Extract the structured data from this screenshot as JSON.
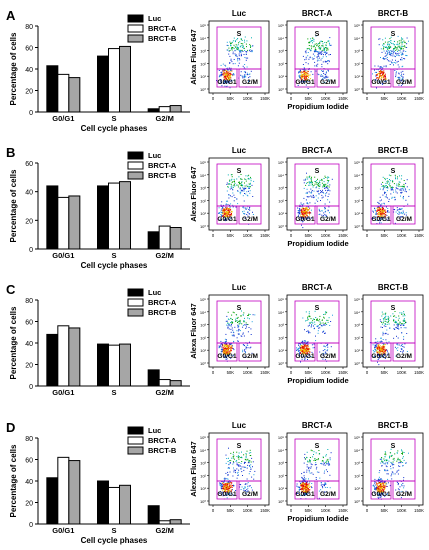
{
  "colors": {
    "luc": "#000000",
    "brct_a": "#ffffff",
    "brct_b": "#a6a6a6",
    "gate": "#c000c0"
  },
  "chart_data": [
    {
      "panel": "A",
      "type": "bar",
      "categories": [
        "G0/G1",
        "S",
        "G2/M"
      ],
      "xlabel": "Cell cycle phases",
      "ylabel": "Percentage of cells",
      "ylim": [
        0,
        80
      ],
      "yticks": [
        0,
        20,
        40,
        60,
        80
      ],
      "legend_position": "top-right",
      "series": [
        {
          "name": "Luc",
          "values": [
            43,
            52,
            3
          ]
        },
        {
          "name": "BRCT-A",
          "values": [
            35,
            59,
            5
          ]
        },
        {
          "name": "BRCT-B",
          "values": [
            32,
            61,
            6
          ]
        }
      ],
      "flow": {
        "titles": [
          "Luc",
          "BRCT-A",
          "BRCT-B"
        ],
        "ylabel": "Alexa Fluor 647",
        "xlabel": "Propidium Iodide",
        "xticks": [
          "0",
          "50K",
          "100K",
          "150K"
        ],
        "yticks": [
          "10⁰",
          "10¹",
          "10²",
          "10³",
          "10⁴",
          "10⁵"
        ],
        "gates": [
          "S",
          "G0/G1",
          "G2/M"
        ]
      }
    },
    {
      "panel": "B",
      "type": "bar",
      "categories": [
        "G0/G1",
        "S",
        "G2/M"
      ],
      "xlabel": "Cell cycle phases",
      "ylabel": "Percentage of cells",
      "ylim": [
        0,
        60
      ],
      "yticks": [
        0,
        20,
        40,
        60
      ],
      "legend_position": "top-right",
      "series": [
        {
          "name": "Luc",
          "values": [
            44,
            44,
            12
          ]
        },
        {
          "name": "BRCT-A",
          "values": [
            36,
            46,
            16
          ]
        },
        {
          "name": "BRCT-B",
          "values": [
            37,
            47,
            15
          ]
        }
      ],
      "flow": {
        "titles": [
          "Luc",
          "BRCT-A",
          "BRCT-B"
        ],
        "ylabel": "Alexa Fluor 647",
        "xlabel": "Propidium Iodide",
        "xticks": [
          "0",
          "50K",
          "100K",
          "150K"
        ],
        "yticks": [
          "10⁰",
          "10¹",
          "10²",
          "10³",
          "10⁴",
          "10⁵"
        ],
        "gates": [
          "S",
          "G0/G1",
          "G2/M"
        ]
      }
    },
    {
      "panel": "C",
      "type": "bar",
      "categories": [
        "G0/G1",
        "S",
        "G2/M"
      ],
      "xlabel": "",
      "ylabel": "Percentage of cells",
      "ylim": [
        0,
        80
      ],
      "yticks": [
        0,
        20,
        40,
        60,
        80
      ],
      "legend_position": "top-right",
      "series": [
        {
          "name": "Luc",
          "values": [
            48,
            39,
            15
          ]
        },
        {
          "name": "BRCT-A",
          "values": [
            56,
            38,
            6
          ]
        },
        {
          "name": "BRCT-B",
          "values": [
            54,
            39,
            5
          ]
        }
      ],
      "flow": {
        "titles": [
          "Luc",
          "BRCT-A",
          "BRCT-B"
        ],
        "ylabel": "Alexa Fluor 647",
        "xlabel": "Propidium Iodide",
        "xticks": [
          "0",
          "50K",
          "100K",
          "150K"
        ],
        "yticks": [
          "10⁰",
          "10¹",
          "10²",
          "10³",
          "10⁴",
          "10⁵"
        ],
        "gates": [
          "S",
          "G0/G1",
          "G2/M"
        ]
      }
    },
    {
      "panel": "D",
      "type": "bar",
      "categories": [
        "G0/G1",
        "S",
        "G2/M"
      ],
      "xlabel": "Cell cycle phases",
      "ylabel": "Percentage of cells",
      "ylim": [
        0,
        80
      ],
      "yticks": [
        0,
        20,
        40,
        60,
        80
      ],
      "legend_position": "top-right",
      "series": [
        {
          "name": "Luc",
          "values": [
            43,
            40,
            17
          ]
        },
        {
          "name": "BRCT-A",
          "values": [
            62,
            34,
            3
          ]
        },
        {
          "name": "BRCT-B",
          "values": [
            59,
            36,
            4
          ]
        }
      ],
      "flow": {
        "titles": [
          "Luc",
          "BRCT-A",
          "BRCT-B"
        ],
        "ylabel": "Alexa Fluor 647",
        "xlabel": "Propidium Iodide",
        "xticks": [
          "0",
          "50K",
          "100K",
          "150K"
        ],
        "yticks": [
          "10⁰",
          "10¹",
          "10²",
          "10³",
          "10⁴",
          "10⁵"
        ],
        "gates": [
          "S",
          "G0/G1",
          "G2/M"
        ]
      }
    }
  ]
}
